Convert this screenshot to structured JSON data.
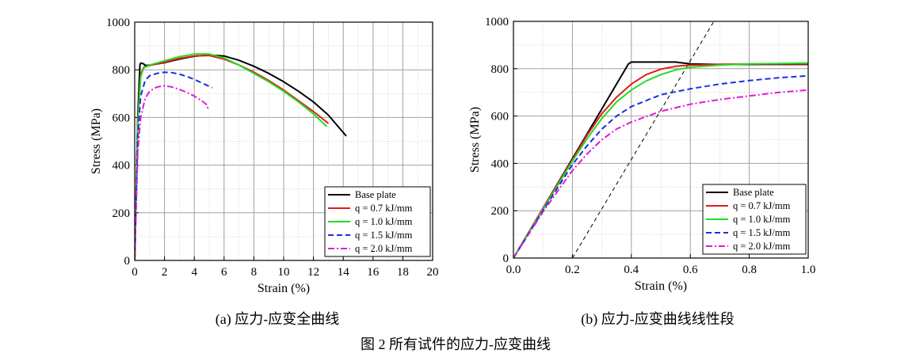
{
  "figure_caption": "图 2 所有试件的应力-应变曲线",
  "legend_entries": [
    "Base plate",
    "q = 0.7 kJ/mm",
    "q = 1.0 kJ/mm",
    "q = 1.5 kJ/mm",
    "q = 2.0 kJ/mm"
  ],
  "colors": {
    "base": "#000000",
    "q07": "#e31a1c",
    "q10": "#22dd22",
    "q15": "#1a2fe0",
    "q20": "#e01ad8"
  },
  "chart_data": [
    {
      "type": "line",
      "caption": "(a) 应力-应变全曲线",
      "xlabel": "Strain (%)",
      "ylabel": "Stress (MPa)",
      "xlim": [
        0,
        20
      ],
      "ylim": [
        0,
        1000
      ],
      "xticks": [
        "0",
        "2",
        "4",
        "6",
        "8",
        "10",
        "12",
        "14",
        "16",
        "18",
        "20"
      ],
      "yticks": [
        "0",
        "200",
        "400",
        "600",
        "800",
        "1000"
      ],
      "grid": true,
      "legend_position": "bottom-right",
      "series": [
        {
          "name": "Base plate",
          "style": "solid",
          "x": [
            0,
            0.2,
            0.35,
            0.4,
            0.45,
            0.6,
            0.7,
            1,
            2,
            3,
            4,
            5,
            6,
            7,
            8,
            9,
            10,
            11,
            12,
            13,
            14.2
          ],
          "y": [
            0,
            600,
            820,
            828,
            828,
            825,
            818,
            820,
            830,
            845,
            857,
            862,
            858,
            840,
            815,
            785,
            750,
            710,
            665,
            610,
            522
          ]
        },
        {
          "name": "q = 0.7 kJ/mm",
          "style": "solid",
          "x": [
            0,
            0.2,
            0.4,
            0.6,
            1,
            2,
            3,
            4,
            5,
            6,
            7,
            8,
            9,
            10,
            11,
            12,
            13
          ],
          "y": [
            0,
            580,
            780,
            810,
            818,
            832,
            848,
            858,
            860,
            845,
            820,
            790,
            755,
            715,
            670,
            625,
            575
          ]
        },
        {
          "name": "q = 1.0 kJ/mm",
          "style": "solid",
          "x": [
            0,
            0.2,
            0.4,
            0.6,
            1,
            2,
            3,
            4,
            5,
            6,
            7,
            8,
            9,
            10,
            11,
            12,
            12.9
          ],
          "y": [
            0,
            560,
            770,
            808,
            820,
            838,
            855,
            866,
            866,
            850,
            820,
            785,
            750,
            710,
            665,
            615,
            562
          ]
        },
        {
          "name": "q = 1.5 kJ/mm",
          "style": "dashed",
          "x": [
            0,
            0.2,
            0.4,
            0.7,
            1,
            1.5,
            2,
            2.5,
            3,
            3.5,
            4,
            4.5,
            5.2
          ],
          "y": [
            0,
            520,
            690,
            755,
            775,
            785,
            790,
            788,
            782,
            772,
            760,
            745,
            725
          ]
        },
        {
          "name": "q = 2.0 kJ/mm",
          "style": "dashdot",
          "x": [
            0,
            0.2,
            0.4,
            0.7,
            1,
            1.5,
            2,
            2.5,
            3,
            3.5,
            4,
            4.5,
            4.9,
            4.9
          ],
          "y": [
            0,
            450,
            600,
            680,
            710,
            728,
            733,
            728,
            718,
            705,
            690,
            670,
            650,
            630
          ]
        }
      ]
    },
    {
      "type": "line",
      "caption": "(b) 应力-应变曲线线性段",
      "xlabel": "Strain (%)",
      "ylabel": "Stress (MPa)",
      "xlim": [
        0,
        1.0
      ],
      "ylim": [
        0,
        1000
      ],
      "xticks": [
        "0.0",
        "0.2",
        "0.4",
        "0.6",
        "0.8",
        "1.0"
      ],
      "yticks": [
        "0",
        "200",
        "400",
        "600",
        "800",
        "1000"
      ],
      "grid": true,
      "legend_position": "bottom-right",
      "offset_line": {
        "style": "dashed",
        "x": [
          0.2,
          0.68
        ],
        "y": [
          0,
          1000
        ]
      },
      "series": [
        {
          "name": "Base plate",
          "style": "solid",
          "x": [
            0,
            0.1,
            0.2,
            0.3,
            0.39,
            0.4,
            0.45,
            0.55,
            0.6,
            0.7,
            0.8,
            0.9,
            1.0
          ],
          "y": [
            0,
            210,
            420,
            630,
            820,
            828,
            828,
            828,
            820,
            818,
            818,
            818,
            818
          ]
        },
        {
          "name": "q = 0.7 kJ/mm",
          "style": "solid",
          "x": [
            0,
            0.1,
            0.2,
            0.25,
            0.3,
            0.35,
            0.4,
            0.45,
            0.5,
            0.55,
            0.6,
            0.7,
            0.8,
            0.9,
            1.0
          ],
          "y": [
            0,
            210,
            415,
            520,
            610,
            680,
            735,
            775,
            798,
            810,
            815,
            818,
            820,
            820,
            820
          ]
        },
        {
          "name": "q = 1.0 kJ/mm",
          "style": "solid",
          "x": [
            0,
            0.1,
            0.2,
            0.25,
            0.3,
            0.35,
            0.4,
            0.45,
            0.5,
            0.55,
            0.6,
            0.7,
            0.8,
            0.9,
            1.0
          ],
          "y": [
            0,
            205,
            410,
            505,
            590,
            660,
            710,
            748,
            775,
            795,
            806,
            815,
            820,
            822,
            824
          ]
        },
        {
          "name": "q = 1.5 kJ/mm",
          "style": "dashed",
          "x": [
            0,
            0.1,
            0.2,
            0.25,
            0.3,
            0.35,
            0.4,
            0.5,
            0.6,
            0.7,
            0.8,
            0.9,
            1.0
          ],
          "y": [
            0,
            200,
            395,
            475,
            545,
            600,
            640,
            690,
            715,
            735,
            750,
            762,
            770
          ]
        },
        {
          "name": "q = 2.0 kJ/mm",
          "style": "dashdot",
          "x": [
            0,
            0.1,
            0.2,
            0.25,
            0.3,
            0.35,
            0.4,
            0.5,
            0.6,
            0.7,
            0.8,
            0.9,
            1.0
          ],
          "y": [
            0,
            195,
            370,
            440,
            500,
            545,
            575,
            620,
            650,
            670,
            685,
            700,
            710
          ]
        }
      ]
    }
  ]
}
